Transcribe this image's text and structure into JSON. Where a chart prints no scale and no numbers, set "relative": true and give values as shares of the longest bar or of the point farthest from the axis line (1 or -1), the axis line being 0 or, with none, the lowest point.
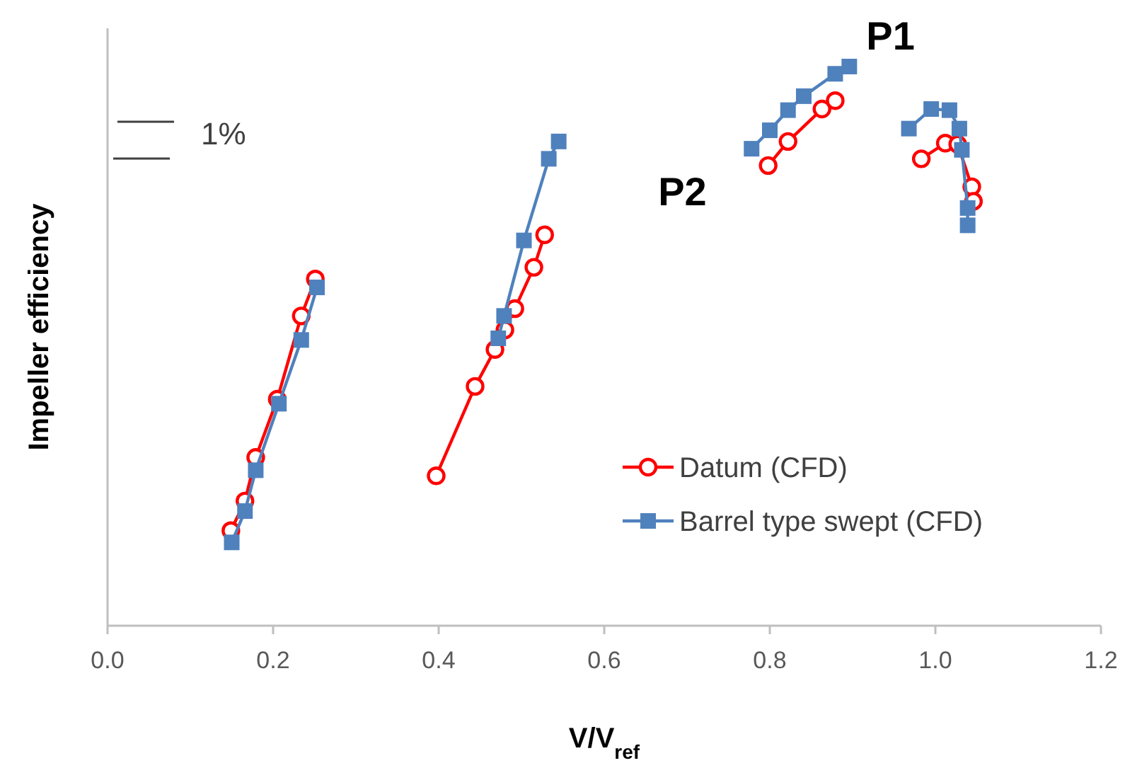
{
  "chart_data": {
    "type": "line",
    "relative": true,
    "xlabel": "V/V$_{ref}$",
    "ylabel": "Impeller efficiency",
    "xlim": [
      0,
      1.2
    ],
    "xticks": [
      {
        "value": 0,
        "label": "0.0"
      },
      {
        "value": 0.2,
        "label": "0.2"
      },
      {
        "value": 0.4,
        "label": "0.4"
      },
      {
        "value": 0.6,
        "label": "0.6"
      },
      {
        "value": 0.8,
        "label": "0.8"
      },
      {
        "value": 1,
        "label": "1.0"
      },
      {
        "value": 1.2,
        "label": "1.2"
      }
    ],
    "tick_labels": "x",
    "grid": false,
    "legend": "bottom right",
    "line_style": "solid",
    "annotations": [
      {
        "text": "P1",
        "x": 0.896,
        "y": 1.0
      },
      {
        "text": "P2",
        "x": 0.778,
        "y": 0.853
      },
      "1%"
    ],
    "series": [
      {
        "name": "Datum (CFD)",
        "color": "#ff0000",
        "marker": "circle",
        "x": [
          0.149,
          0.166,
          0.179,
          0.205,
          0.234,
          0.251,
          null,
          0.397,
          0.444,
          0.468,
          0.48,
          0.492,
          0.515,
          0.528,
          null,
          0.798,
          0.822,
          0.863,
          0.879,
          null,
          0.983,
          1.012,
          1.027,
          1.044,
          1.046
        ],
        "values": [
          0.17,
          0.223,
          0.301,
          0.405,
          0.554,
          0.62,
          null,
          0.268,
          0.428,
          0.494,
          0.529,
          0.567,
          0.641,
          0.699,
          null,
          0.823,
          0.866,
          0.924,
          0.939,
          null,
          0.835,
          0.863,
          0.861,
          0.785,
          0.759
        ]
      },
      {
        "name": "Barrel type swept (CFD)",
        "color": "#4f81bd",
        "marker": "square",
        "x": [
          0.15,
          0.166,
          0.179,
          0.207,
          0.234,
          0.253,
          null,
          0.472,
          0.479,
          0.503,
          0.533,
          0.545,
          null,
          0.778,
          0.8,
          0.822,
          0.841,
          0.879,
          0.896,
          null,
          0.968,
          0.995,
          1.017,
          1.029,
          1.032,
          1.039,
          1.039
        ],
        "values": [
          0.149,
          0.205,
          0.278,
          0.397,
          0.511,
          0.605,
          null,
          0.514,
          0.554,
          0.689,
          0.835,
          0.866,
          null,
          0.853,
          0.886,
          0.922,
          0.947,
          0.987,
          1.0,
          null,
          0.889,
          0.924,
          0.922,
          0.889,
          0.851,
          0.747,
          0.716
        ]
      }
    ]
  }
}
